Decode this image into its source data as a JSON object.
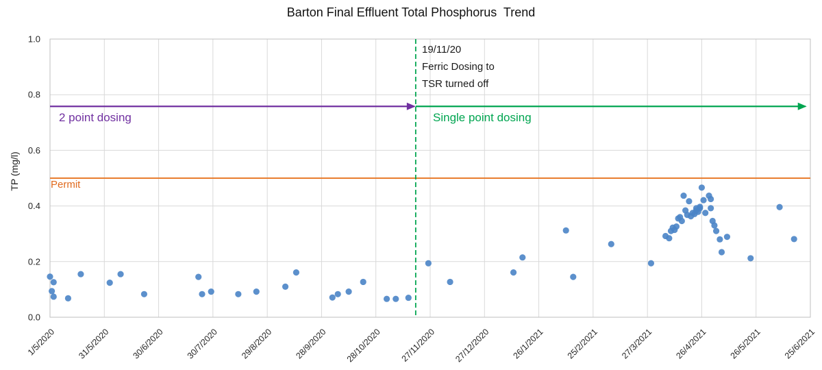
{
  "chart_data": {
    "type": "scatter",
    "title": "Barton Final Effluent Total Phosphorus  Trend",
    "xlabel": "",
    "ylabel": "TP (mg/l)",
    "ylim": [
      0.0,
      1.0
    ],
    "grid": true,
    "legend_position": "none",
    "y_axis": {
      "ticks": [
        "0.0",
        "0.2",
        "0.4",
        "0.6",
        "0.8",
        "1.0"
      ]
    },
    "x_axis": {
      "tick_interval_days": 30,
      "ticks": [
        {
          "day": 0,
          "label": "1/5/2020"
        },
        {
          "day": 30,
          "label": "31/5/2020"
        },
        {
          "day": 60,
          "label": "30/6/2020"
        },
        {
          "day": 90,
          "label": "30/7/2020"
        },
        {
          "day": 120,
          "label": "29/8/2020"
        },
        {
          "day": 150,
          "label": "28/9/2020"
        },
        {
          "day": 180,
          "label": "28/10/2020"
        },
        {
          "day": 210,
          "label": "27/11/2020"
        },
        {
          "day": 240,
          "label": "27/12/2020"
        },
        {
          "day": 270,
          "label": "26/1/2021"
        },
        {
          "day": 300,
          "label": "25/2/2021"
        },
        {
          "day": 330,
          "label": "27/3/2021"
        },
        {
          "day": 360,
          "label": "26/4/2021"
        },
        {
          "day": 390,
          "label": "26/5/2021"
        },
        {
          "day": 420,
          "label": "25/6/2021"
        }
      ]
    },
    "series": [
      {
        "name": "TP (mg/l)",
        "marker_color": "#4A84C6",
        "points": [
          [
            0,
            0.146
          ],
          [
            1,
            0.094
          ],
          [
            2,
            0.126
          ],
          [
            2,
            0.074
          ],
          [
            10,
            0.068
          ],
          [
            17,
            0.155
          ],
          [
            33,
            0.124
          ],
          [
            39,
            0.155
          ],
          [
            52,
            0.083
          ],
          [
            82,
            0.145
          ],
          [
            84,
            0.083
          ],
          [
            89,
            0.092
          ],
          [
            104,
            0.083
          ],
          [
            114,
            0.092
          ],
          [
            130,
            0.11
          ],
          [
            136,
            0.161
          ],
          [
            156,
            0.071
          ],
          [
            159,
            0.083
          ],
          [
            165,
            0.092
          ],
          [
            173,
            0.127
          ],
          [
            186,
            0.066
          ],
          [
            191,
            0.066
          ],
          [
            198,
            0.07
          ],
          [
            209,
            0.194
          ],
          [
            221,
            0.127
          ],
          [
            256,
            0.161
          ],
          [
            261,
            0.215
          ],
          [
            285,
            0.312
          ],
          [
            289,
            0.145
          ],
          [
            310,
            0.263
          ],
          [
            332,
            0.194
          ],
          [
            340,
            0.292
          ],
          [
            342,
            0.284
          ],
          [
            343,
            0.31
          ],
          [
            344,
            0.322
          ],
          [
            345,
            0.314
          ],
          [
            346,
            0.326
          ],
          [
            347,
            0.355
          ],
          [
            348,
            0.36
          ],
          [
            349,
            0.346
          ],
          [
            350,
            0.437
          ],
          [
            351,
            0.384
          ],
          [
            352,
            0.368
          ],
          [
            353,
            0.417
          ],
          [
            354,
            0.363
          ],
          [
            355,
            0.375
          ],
          [
            356,
            0.371
          ],
          [
            357,
            0.384
          ],
          [
            357,
            0.392
          ],
          [
            358,
            0.379
          ],
          [
            359,
            0.397
          ],
          [
            359,
            0.392
          ],
          [
            360,
            0.466
          ],
          [
            361,
            0.421
          ],
          [
            362,
            0.375
          ],
          [
            364,
            0.437
          ],
          [
            365,
            0.425
          ],
          [
            365,
            0.392
          ],
          [
            366,
            0.346
          ],
          [
            367,
            0.33
          ],
          [
            368,
            0.31
          ],
          [
            370,
            0.28
          ],
          [
            371,
            0.234
          ],
          [
            374,
            0.289
          ],
          [
            387,
            0.212
          ],
          [
            403,
            0.396
          ],
          [
            411,
            0.281
          ]
        ]
      }
    ],
    "permit": {
      "label": "Permit",
      "value": 0.5,
      "color": "#E87D2E"
    },
    "dosing_phases": [
      {
        "label": "2 point dosing",
        "color": "#7030A0",
        "line_y": 0.758,
        "from_day": 0,
        "to_day": 202
      },
      {
        "label": "Single point dosing",
        "color": "#00A550",
        "line_y": 0.758,
        "from_day": 202,
        "to_day": 418
      }
    ],
    "event": {
      "day": 202,
      "line_color": "#00A550",
      "line_style": "dashed",
      "annotation_lines": [
        "19/11/20",
        "Ferric Dosing to",
        "TSR turned off"
      ]
    }
  }
}
